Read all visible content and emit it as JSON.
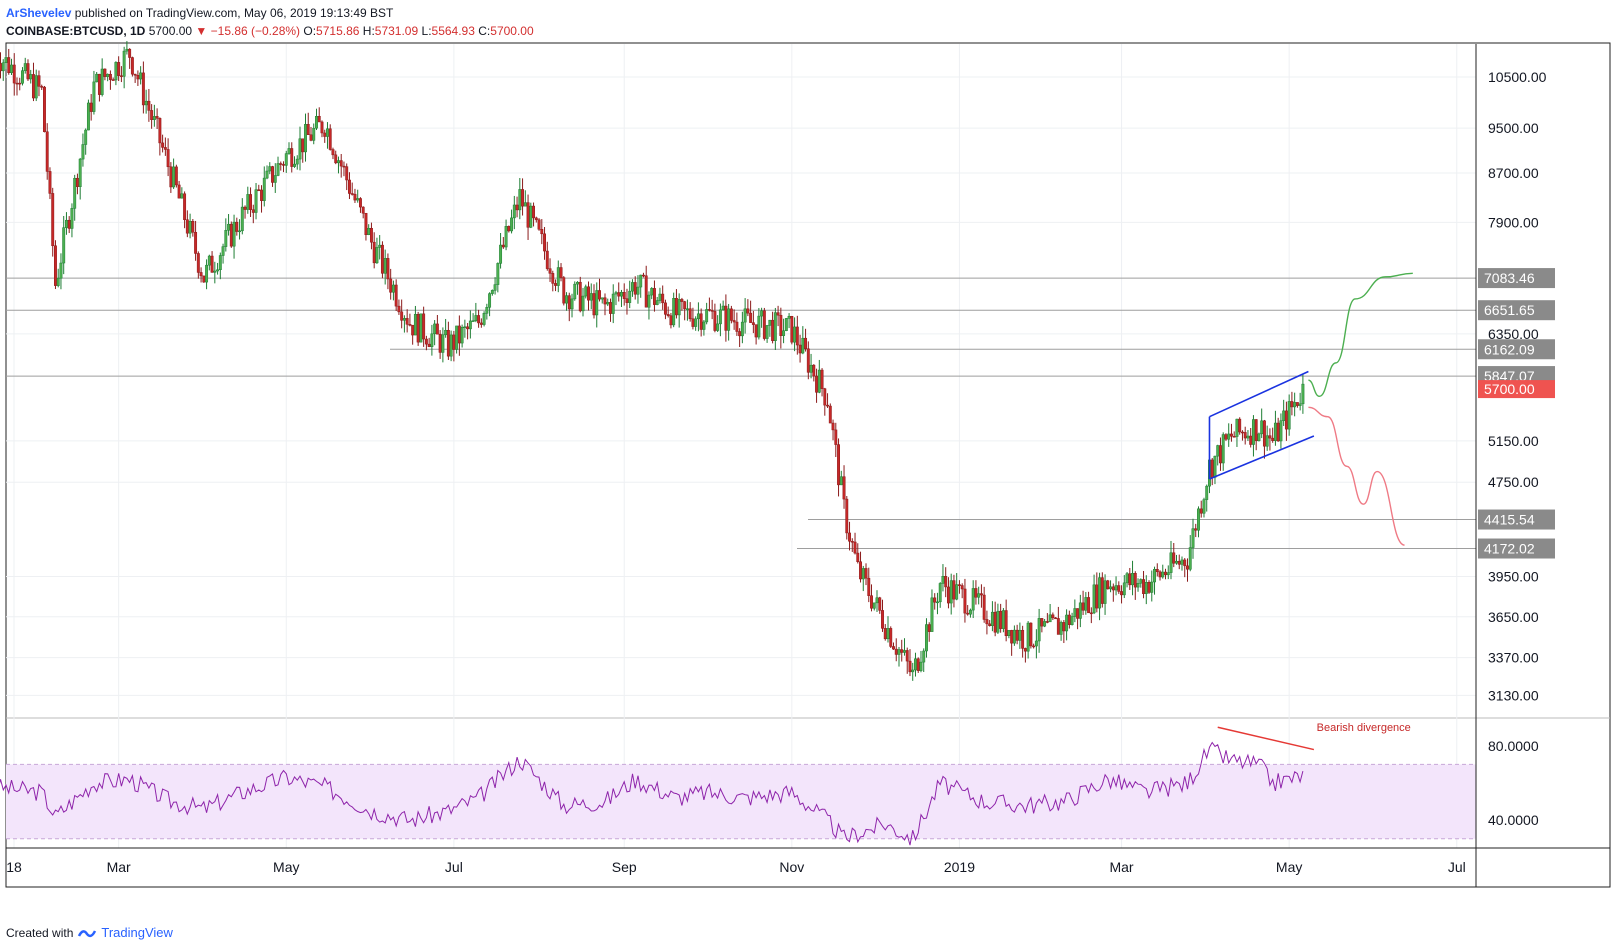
{
  "header": {
    "author": "ArShevelev",
    "published": "published on TradingView.com, May 06, 2019 19:13:49 BST",
    "symbol": "COINBASE:BTCUSD, 1D",
    "last": "5700.00",
    "change": "▼ −15.86 (−0.28%)",
    "o_label": "O:",
    "o_value": "5715.86",
    "h_label": "H:",
    "h_value": "5731.09",
    "l_label": "L:",
    "l_value": "5564.93",
    "c_label": "C:",
    "c_value": "5700.00"
  },
  "footer": {
    "created_with": "Created with",
    "brand": "TradingView"
  },
  "colors": {
    "up": "#26a69a",
    "down": "#ef5350",
    "candle_up": "#1e7e34",
    "candle_down": "#8b1a1a",
    "rsi_line": "#8e24aa",
    "rsi_band": "#f3e5fb",
    "channel": "#1a33e0",
    "green_path": "#4caf50",
    "red_path": "#ef7a85",
    "divergence": "#e53935",
    "level_line": "#9e9e9e"
  },
  "chart_data": [
    {
      "type": "line",
      "title": "",
      "x_tick_labels": [
        "18",
        "Mar",
        "May",
        "Jul",
        "Sep",
        "Nov",
        "2019",
        "Mar",
        "May",
        "Jul"
      ],
      "y_tick_labels": [
        "10500.00",
        "9500.00",
        "8700.00",
        "7900.00",
        "6350.00",
        "5150.00",
        "4750.00",
        "3950.00",
        "3650.00",
        "3370.00",
        "3130.00"
      ],
      "price_axis_labels": [
        "7083.46",
        "6651.65",
        "6162.09",
        "5847.07",
        "5700.00",
        "4415.54",
        "4172.02"
      ],
      "scale": "log",
      "ylim": [
        3000,
        11000
      ],
      "x": [
        "2018-01-15",
        "2018-02-01",
        "2018-02-06",
        "2018-02-20",
        "2018-03-05",
        "2018-03-20",
        "2018-04-01",
        "2018-04-15",
        "2018-05-01",
        "2018-05-15",
        "2018-06-01",
        "2018-06-15",
        "2018-06-29",
        "2018-07-10",
        "2018-07-25",
        "2018-08-10",
        "2018-08-25",
        "2018-09-05",
        "2018-09-20",
        "2018-10-01",
        "2018-10-15",
        "2018-11-01",
        "2018-11-14",
        "2018-11-20",
        "2018-11-25",
        "2018-12-05",
        "2018-12-15",
        "2018-12-25",
        "2019-01-10",
        "2019-01-25",
        "2019-02-08",
        "2019-02-24",
        "2019-03-10",
        "2019-03-25",
        "2019-04-02",
        "2019-04-10",
        "2019-04-20",
        "2019-04-25",
        "2019-05-06"
      ],
      "series": [
        {
          "values": [
            11000,
            10200,
            7000,
            10300,
            11000,
            8700,
            7100,
            8000,
            9000,
            9600,
            7600,
            6500,
            6200,
            6500,
            8300,
            6900,
            6700,
            7000,
            6600,
            6600,
            6500,
            6400,
            5600,
            4500,
            4000,
            3600,
            3250,
            3900,
            3700,
            3500,
            3600,
            3900,
            3900,
            4100,
            4900,
            5200,
            5300,
            5150,
            5700
          ]
        }
      ],
      "rsi": {
        "yaxis_labels": [
          "80.0000",
          "40.0000"
        ],
        "band": [
          30,
          70
        ],
        "values": [
          58,
          55,
          42,
          60,
          62,
          50,
          46,
          55,
          63,
          58,
          45,
          40,
          45,
          52,
          73,
          48,
          50,
          62,
          52,
          55,
          52,
          55,
          40,
          30,
          33,
          38,
          30,
          60,
          50,
          48,
          50,
          62,
          55,
          60,
          78,
          72,
          70,
          60,
          64
        ]
      },
      "annotations": {
        "divergence_label": "Bearish divergence",
        "rising_wedge": {
          "upper": [
            [
              "2019-04-02",
              5400
            ],
            [
              "2019-05-08",
              5900
            ]
          ],
          "lower": [
            [
              "2019-04-02",
              4780
            ],
            [
              "2019-05-10",
              5200
            ]
          ]
        },
        "bull_path": [
          [
            "2019-05-08",
            5800
          ],
          [
            "2019-05-12",
            5620
          ],
          [
            "2019-05-18",
            6000
          ],
          [
            "2019-05-25",
            6800
          ],
          [
            "2019-06-05",
            7100
          ],
          [
            "2019-06-15",
            7150
          ]
        ],
        "bear_path": [
          [
            "2019-05-08",
            5500
          ],
          [
            "2019-05-15",
            5400
          ],
          [
            "2019-05-22",
            4900
          ],
          [
            "2019-05-28",
            4550
          ],
          [
            "2019-06-02",
            4850
          ],
          [
            "2019-06-12",
            4200
          ]
        ]
      }
    }
  ]
}
